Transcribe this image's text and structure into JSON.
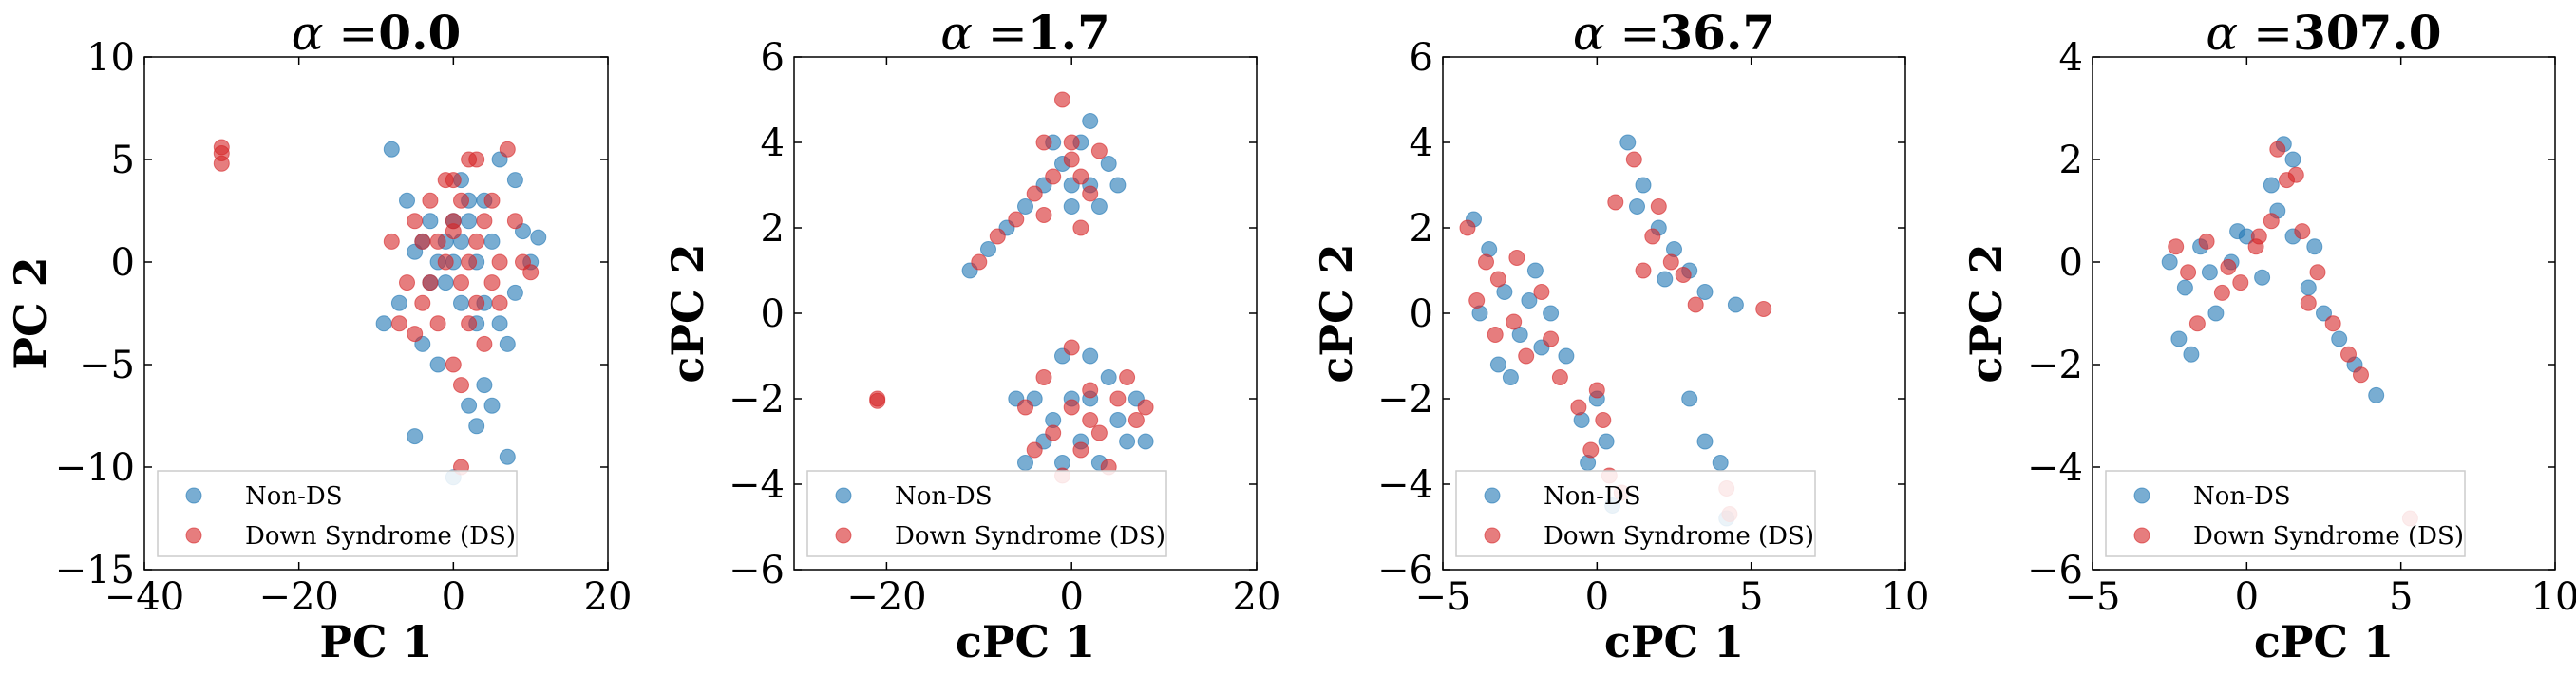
{
  "colors": {
    "non_ds": "#1f77b4",
    "ds": "#d62728"
  },
  "chart_data": [
    {
      "type": "scatter",
      "title_prefix": "α =",
      "title_value": "0.0",
      "xlabel": "PC 1",
      "ylabel": "PC 2",
      "xlim": [
        -40,
        20
      ],
      "ylim": [
        -15,
        10
      ],
      "xticks": [
        -40,
        -20,
        0,
        20
      ],
      "yticks": [
        -15,
        -10,
        -5,
        0,
        5,
        10
      ],
      "legend": {
        "position": "lower-left",
        "entries": [
          "Non-DS",
          "Down Syndrome (DS)"
        ]
      },
      "series": [
        {
          "name": "Non-DS",
          "points": [
            [
              -8,
              5.5
            ],
            [
              -6,
              3
            ],
            [
              -5,
              0.5
            ],
            [
              -3,
              -1
            ],
            [
              -9,
              -3
            ],
            [
              -7,
              -2
            ],
            [
              -4,
              -4
            ],
            [
              -2,
              -5
            ],
            [
              -1,
              1
            ],
            [
              0,
              2
            ],
            [
              1,
              4
            ],
            [
              2,
              2
            ],
            [
              3,
              0
            ],
            [
              4,
              -2
            ],
            [
              5,
              1
            ],
            [
              6,
              -3
            ],
            [
              7,
              -4
            ],
            [
              8,
              -1.5
            ],
            [
              9,
              1.5
            ],
            [
              10,
              0
            ],
            [
              11,
              1.2
            ],
            [
              8,
              4
            ],
            [
              6,
              5
            ],
            [
              4,
              -6
            ],
            [
              2,
              -7
            ],
            [
              3,
              -8
            ],
            [
              -5,
              -8.5
            ],
            [
              0,
              -10.5
            ],
            [
              7,
              -9.5
            ],
            [
              5,
              -7
            ],
            [
              -3,
              2
            ],
            [
              -1,
              -1
            ],
            [
              1,
              -2
            ],
            [
              2,
              3
            ],
            [
              3,
              -3
            ],
            [
              -2,
              0
            ],
            [
              0,
              0
            ],
            [
              1,
              1
            ],
            [
              -4,
              1
            ],
            [
              4,
              3
            ]
          ]
        },
        {
          "name": "Down Syndrome (DS)",
          "points": [
            [
              -30,
              5.6
            ],
            [
              -30,
              4.8
            ],
            [
              -30,
              5.3
            ],
            [
              -8,
              1
            ],
            [
              -7,
              -3
            ],
            [
              -6,
              -1
            ],
            [
              -5,
              2
            ],
            [
              -4,
              -2
            ],
            [
              -3,
              3
            ],
            [
              -2,
              -3
            ],
            [
              -1,
              4
            ],
            [
              0,
              2
            ],
            [
              1,
              -1
            ],
            [
              2,
              5
            ],
            [
              3,
              1
            ],
            [
              4,
              -4
            ],
            [
              5,
              3
            ],
            [
              6,
              0
            ],
            [
              7,
              5.5
            ],
            [
              8,
              2
            ],
            [
              9,
              0
            ],
            [
              10,
              -0.5
            ],
            [
              0,
              -5
            ],
            [
              1,
              -6
            ],
            [
              2,
              -3
            ],
            [
              -1,
              0
            ],
            [
              0,
              1.5
            ],
            [
              1,
              3
            ],
            [
              2,
              0
            ],
            [
              3,
              -2
            ],
            [
              -2,
              1
            ],
            [
              -3,
              -1
            ],
            [
              4,
              2
            ],
            [
              5,
              -1
            ],
            [
              6,
              -2
            ],
            [
              -4,
              1
            ],
            [
              -5,
              -3.5
            ],
            [
              1,
              -10
            ],
            [
              0,
              4
            ],
            [
              3,
              5
            ]
          ]
        }
      ]
    },
    {
      "type": "scatter",
      "title_prefix": "α =",
      "title_value": "1.7",
      "xlabel": "cPC 1",
      "ylabel": "cPC 2",
      "xlim": [
        -30,
        20
      ],
      "ylim": [
        -6,
        6
      ],
      "xticks": [
        -20,
        0,
        20
      ],
      "yticks": [
        -6,
        -4,
        -2,
        0,
        2,
        4,
        6
      ],
      "legend": {
        "position": "lower-left",
        "entries": [
          "Non-DS",
          "Down Syndrome (DS)"
        ]
      },
      "series": [
        {
          "name": "Non-DS",
          "points": [
            [
              -11,
              1
            ],
            [
              -9,
              1.5
            ],
            [
              -7,
              2
            ],
            [
              -5,
              2.5
            ],
            [
              -3,
              3
            ],
            [
              -2,
              4
            ],
            [
              -1,
              3.5
            ],
            [
              0,
              3
            ],
            [
              1,
              4
            ],
            [
              2,
              3
            ],
            [
              3,
              2.5
            ],
            [
              4,
              3.5
            ],
            [
              5,
              3
            ],
            [
              -4,
              -2
            ],
            [
              -3,
              -3
            ],
            [
              -2,
              -2.5
            ],
            [
              -1,
              -3.5
            ],
            [
              0,
              -2
            ],
            [
              1,
              -3
            ],
            [
              2,
              -2
            ],
            [
              3,
              -3.5
            ],
            [
              4,
              -1.5
            ],
            [
              5,
              -2.5
            ],
            [
              6,
              -3
            ],
            [
              7,
              -2
            ],
            [
              8,
              -3
            ],
            [
              -6,
              -2
            ],
            [
              -5,
              -3.5
            ],
            [
              -1,
              -1
            ],
            [
              2,
              -1
            ],
            [
              0,
              2.5
            ],
            [
              2,
              4.5
            ]
          ]
        },
        {
          "name": "Down Syndrome (DS)",
          "points": [
            [
              -21,
              -2
            ],
            [
              -21,
              -2.05
            ],
            [
              -10,
              1.2
            ],
            [
              -8,
              1.8
            ],
            [
              -6,
              2.2
            ],
            [
              -4,
              2.8
            ],
            [
              -2,
              3.2
            ],
            [
              0,
              4
            ],
            [
              1,
              3.2
            ],
            [
              2,
              2.8
            ],
            [
              3,
              3.8
            ],
            [
              -1,
              5
            ],
            [
              -3,
              4
            ],
            [
              -5,
              -2.2
            ],
            [
              -4,
              -3.2
            ],
            [
              -2,
              -2.8
            ],
            [
              0,
              -2.2
            ],
            [
              1,
              -3.2
            ],
            [
              2,
              -1.8
            ],
            [
              3,
              -2.8
            ],
            [
              4,
              -3.6
            ],
            [
              5,
              -2
            ],
            [
              6,
              -1.5
            ],
            [
              7,
              -2.5
            ],
            [
              8,
              -2.2
            ],
            [
              -3,
              -1.5
            ],
            [
              0,
              -0.8
            ],
            [
              -1,
              -3.8
            ],
            [
              1,
              2
            ],
            [
              0,
              3.6
            ],
            [
              -3,
              2.3
            ],
            [
              2,
              -2.5
            ]
          ]
        }
      ]
    },
    {
      "type": "scatter",
      "title_prefix": "α =",
      "title_value": "36.7",
      "xlabel": "cPC 1",
      "ylabel": "cPC 2",
      "xlim": [
        -5,
        10
      ],
      "ylim": [
        -6,
        6
      ],
      "xticks": [
        -5,
        0,
        5,
        10
      ],
      "yticks": [
        -6,
        -4,
        -2,
        0,
        2,
        4,
        6
      ],
      "legend": {
        "position": "lower-left",
        "entries": [
          "Non-DS",
          "Down Syndrome (DS)"
        ]
      },
      "series": [
        {
          "name": "Non-DS",
          "points": [
            [
              -4,
              2.2
            ],
            [
              -3.5,
              1.5
            ],
            [
              -3,
              0.5
            ],
            [
              -2.5,
              -0.5
            ],
            [
              -2,
              1
            ],
            [
              -1.5,
              0
            ],
            [
              -1,
              -1
            ],
            [
              -3.8,
              0
            ],
            [
              -3.2,
              -1.2
            ],
            [
              -2.8,
              -1.5
            ],
            [
              -0.5,
              -2.5
            ],
            [
              -0.3,
              -3.5
            ],
            [
              0,
              -2
            ],
            [
              0.3,
              -3
            ],
            [
              0.5,
              -4.5
            ],
            [
              1,
              4
            ],
            [
              1.5,
              3
            ],
            [
              2,
              2
            ],
            [
              2.5,
              1.5
            ],
            [
              3,
              1
            ],
            [
              3.5,
              0.5
            ],
            [
              4.5,
              0.2
            ],
            [
              3,
              -2
            ],
            [
              3.5,
              -3
            ],
            [
              4,
              -3.5
            ],
            [
              4.2,
              -4.8
            ],
            [
              1.3,
              2.5
            ],
            [
              2.2,
              0.8
            ],
            [
              -1.8,
              -0.8
            ],
            [
              -2.2,
              0.3
            ]
          ]
        },
        {
          "name": "Down Syndrome (DS)",
          "points": [
            [
              -4.2,
              2
            ],
            [
              -3.6,
              1.2
            ],
            [
              -3.2,
              0.8
            ],
            [
              -2.7,
              -0.2
            ],
            [
              -2.3,
              -1
            ],
            [
              -1.8,
              0.5
            ],
            [
              -1.2,
              -1.5
            ],
            [
              -3.9,
              0.3
            ],
            [
              -0.6,
              -2.2
            ],
            [
              -0.2,
              -3.2
            ],
            [
              0.2,
              -2.5
            ],
            [
              0.4,
              -3.8
            ],
            [
              0.6,
              2.6
            ],
            [
              1.2,
              3.6
            ],
            [
              1.8,
              1.8
            ],
            [
              2.4,
              1.2
            ],
            [
              3.2,
              0.2
            ],
            [
              5.4,
              0.1
            ],
            [
              4.2,
              -4.1
            ],
            [
              4.3,
              -4.7
            ],
            [
              1.5,
              1
            ],
            [
              2,
              2.5
            ],
            [
              -2.6,
              1.3
            ],
            [
              -1.5,
              -0.6
            ],
            [
              0,
              -1.8
            ],
            [
              0.8,
              -4.2
            ],
            [
              2.8,
              0.9
            ],
            [
              -3.3,
              -0.5
            ]
          ]
        }
      ]
    },
    {
      "type": "scatter",
      "title_prefix": "α =",
      "title_value": "307.0",
      "xlabel": "cPC 1",
      "ylabel": "cPC 2",
      "xlim": [
        -5,
        10
      ],
      "ylim": [
        -6,
        4
      ],
      "xticks": [
        -5,
        0,
        5,
        10
      ],
      "yticks": [
        -6,
        -4,
        -2,
        0,
        2,
        4
      ],
      "legend": {
        "position": "lower-left",
        "entries": [
          "Non-DS",
          "Down Syndrome (DS)"
        ]
      },
      "series": [
        {
          "name": "Non-DS",
          "points": [
            [
              -2.5,
              0
            ],
            [
              -2,
              -0.5
            ],
            [
              -1.5,
              0.3
            ],
            [
              -1,
              -1
            ],
            [
              -0.5,
              0
            ],
            [
              0,
              0.5
            ],
            [
              0.5,
              -0.3
            ],
            [
              1,
              1
            ],
            [
              1.5,
              2
            ],
            [
              1.5,
              0.5
            ],
            [
              2,
              -0.5
            ],
            [
              2.5,
              -1
            ],
            [
              3,
              -1.5
            ],
            [
              3.5,
              -2
            ],
            [
              4.2,
              -2.6
            ],
            [
              -1.8,
              -1.8
            ],
            [
              -2.2,
              -1.5
            ],
            [
              -1.2,
              -0.2
            ],
            [
              0.8,
              1.5
            ],
            [
              1.2,
              2.3
            ],
            [
              -0.3,
              0.6
            ],
            [
              2.2,
              0.3
            ]
          ]
        },
        {
          "name": "Down Syndrome (DS)",
          "points": [
            [
              -2.3,
              0.3
            ],
            [
              -1.9,
              -0.2
            ],
            [
              -1.3,
              0.4
            ],
            [
              -0.8,
              -0.6
            ],
            [
              -0.2,
              -0.4
            ],
            [
              0.3,
              0.3
            ],
            [
              0.8,
              0.8
            ],
            [
              1,
              2.2
            ],
            [
              1.3,
              1.6
            ],
            [
              1.8,
              0.6
            ],
            [
              2.3,
              -0.2
            ],
            [
              2.8,
              -1.2
            ],
            [
              3.3,
              -1.8
            ],
            [
              3.7,
              -2.2
            ],
            [
              5.3,
              -5
            ],
            [
              -1.6,
              -1.2
            ],
            [
              0.4,
              0.5
            ],
            [
              1.6,
              1.7
            ],
            [
              -0.6,
              -0.1
            ],
            [
              2,
              -0.8
            ]
          ]
        }
      ]
    }
  ]
}
